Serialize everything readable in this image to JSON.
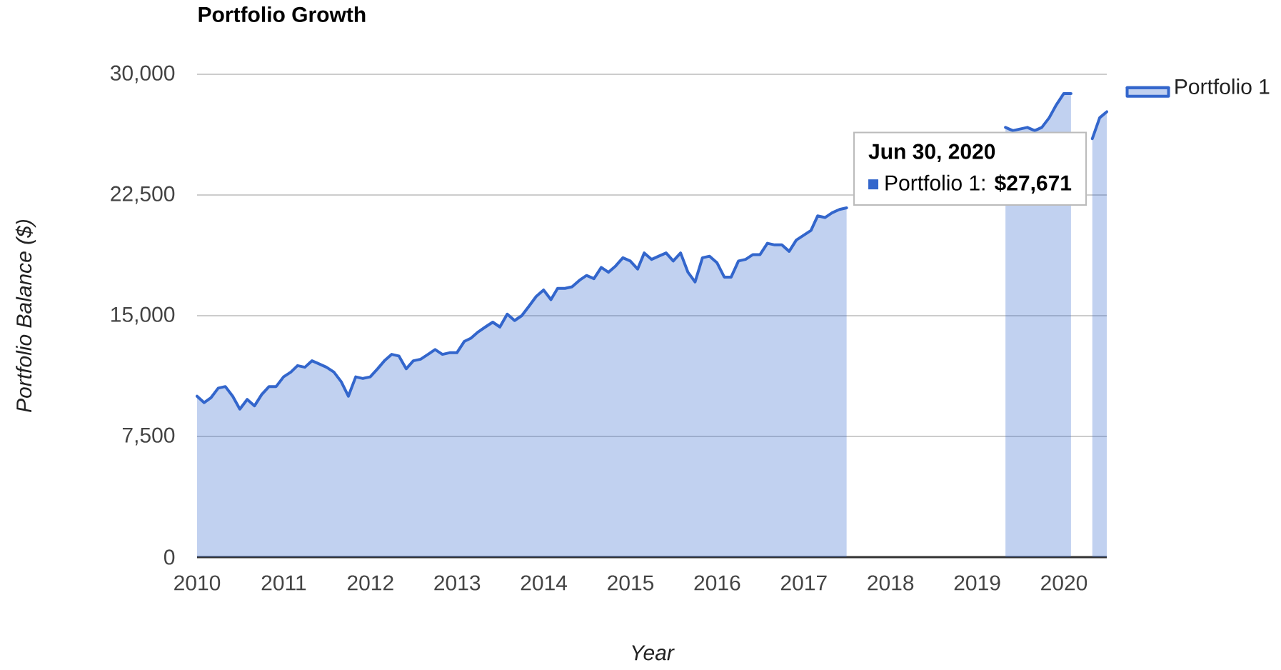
{
  "chart_data": {
    "type": "area",
    "title": "Portfolio Growth",
    "xlabel": "Year",
    "ylabel": "Portfolio Balance ($)",
    "x": [
      "2010-01-01",
      "2010-01-31",
      "2010-02-28",
      "2010-03-31",
      "2010-04-30",
      "2010-05-31",
      "2010-06-30",
      "2010-07-31",
      "2010-08-31",
      "2010-09-30",
      "2010-10-31",
      "2010-11-30",
      "2010-12-31",
      "2011-01-31",
      "2011-02-28",
      "2011-03-31",
      "2011-04-30",
      "2011-05-31",
      "2011-06-30",
      "2011-07-31",
      "2011-08-31",
      "2011-09-30",
      "2011-10-31",
      "2011-11-30",
      "2011-12-31",
      "2012-01-31",
      "2012-02-29",
      "2012-03-31",
      "2012-04-30",
      "2012-05-31",
      "2012-06-30",
      "2012-07-31",
      "2012-08-31",
      "2012-09-30",
      "2012-10-31",
      "2012-11-30",
      "2012-12-31",
      "2013-01-31",
      "2013-02-28",
      "2013-03-31",
      "2013-04-30",
      "2013-05-31",
      "2013-06-30",
      "2013-07-31",
      "2013-08-31",
      "2013-09-30",
      "2013-10-31",
      "2013-11-30",
      "2013-12-31",
      "2014-01-31",
      "2014-02-28",
      "2014-03-31",
      "2014-04-30",
      "2014-05-31",
      "2014-06-30",
      "2014-07-31",
      "2014-08-31",
      "2014-09-30",
      "2014-10-31",
      "2014-11-30",
      "2014-12-31",
      "2015-01-31",
      "2015-02-28",
      "2015-03-31",
      "2015-04-30",
      "2015-05-31",
      "2015-06-30",
      "2015-07-31",
      "2015-08-31",
      "2015-09-30",
      "2015-10-31",
      "2015-11-30",
      "2015-12-31",
      "2016-01-31",
      "2016-02-29",
      "2016-03-31",
      "2016-04-30",
      "2016-05-31",
      "2016-06-30",
      "2016-07-31",
      "2016-08-31",
      "2016-09-30",
      "2016-10-31",
      "2016-11-30",
      "2016-12-31",
      "2017-01-31",
      "2017-02-28",
      "2017-03-31",
      "2017-04-30",
      "2017-05-31",
      "2017-06-30",
      "2017-07-31",
      "2017-08-31",
      "2017-09-30",
      "2017-10-31",
      "2017-11-30",
      "2017-12-31",
      "2018-01-31",
      "2018-02-28",
      "2018-03-31",
      "2018-04-30",
      "2018-05-31",
      "2018-06-30",
      "2018-07-31",
      "2018-08-31",
      "2018-09-30",
      "2018-10-31",
      "2018-11-30",
      "2018-12-31",
      "2019-01-31",
      "2019-02-28",
      "2019-03-31",
      "2019-04-30",
      "2019-05-31",
      "2019-06-30",
      "2019-07-31",
      "2019-08-31",
      "2019-09-30",
      "2019-10-31",
      "2019-11-30",
      "2019-12-31",
      "2020-01-31",
      "2020-02-29",
      "2020-03-31",
      "2020-04-30",
      "2020-05-31",
      "2020-06-30"
    ],
    "series": [
      {
        "name": "Portfolio 1",
        "color": "#3366cc",
        "values": [
          10000,
          9600,
          9900,
          10500,
          10600,
          10000,
          9200,
          9800,
          9400,
          10100,
          10600,
          10600,
          11200,
          11500,
          11900,
          11800,
          12200,
          12000,
          11800,
          11500,
          10900,
          10000,
          11200,
          11100,
          11200,
          11700,
          12200,
          12600,
          12500,
          11700,
          12200,
          12300,
          12600,
          12900,
          12600,
          12700,
          12700,
          13400,
          13600,
          14000,
          14300,
          14600,
          14300,
          15100,
          14700,
          15000,
          15600,
          16200,
          16600,
          16000,
          16700,
          16700,
          16800,
          17200,
          17500,
          17300,
          18000,
          17700,
          18100,
          18600,
          18400,
          17900,
          18900,
          18500,
          18700,
          18900,
          18400,
          18900,
          17700,
          17100,
          18600,
          18700,
          18300,
          17400,
          17400,
          18400,
          18500,
          18800,
          18800,
          19500,
          19400,
          19400,
          19000,
          19700,
          20000,
          20300,
          21200,
          21100,
          21400,
          21600,
          21700,
          null,
          null,
          null,
          null,
          null,
          null,
          null,
          null,
          null,
          null,
          null,
          null,
          null,
          null,
          null,
          null,
          null,
          null,
          null,
          null,
          null,
          26700,
          26500,
          26600,
          26700,
          26500,
          26700,
          27300,
          28100,
          28800,
          28800,
          null,
          null,
          26000,
          27300,
          27671
        ]
      }
    ],
    "xlim": [
      "2010-01-01",
      "2020-06-30"
    ],
    "xticks": [
      "2010",
      "2011",
      "2012",
      "2013",
      "2014",
      "2015",
      "2016",
      "2017",
      "2018",
      "2019",
      "2020"
    ],
    "ylim": [
      0,
      30000
    ],
    "yticks": [
      0,
      {
        "value": 7500,
        "label": "7,500"
      },
      {
        "value": 15000,
        "label": "15,000"
      },
      {
        "value": 22500,
        "label": "22,500"
      },
      {
        "value": 30000,
        "label": "30,000"
      }
    ],
    "grid": "y",
    "legend": "top right",
    "annotations": [
      "Jun 30, 2020",
      "Portfolio 1: **$27,671**"
    ]
  }
}
